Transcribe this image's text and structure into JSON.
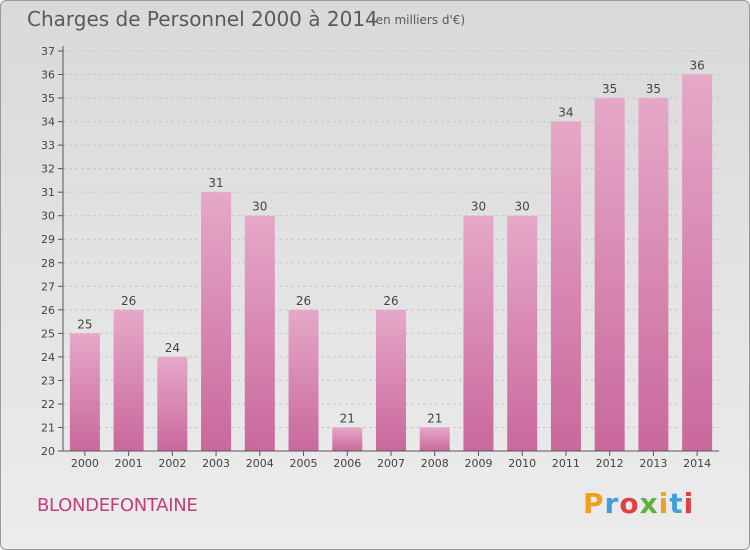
{
  "header": {
    "title": "Charges de Personnel 2000 à 2014",
    "subtitle": "(en milliers d'€)"
  },
  "footer": {
    "commune": "BLONDEFONTAINE",
    "logo": "Proxiti",
    "logo_colors": [
      "#f0a020",
      "#3fa0dc",
      "#e04040",
      "#60b040",
      "#f0a020",
      "#3fa0dc",
      "#e04040"
    ]
  },
  "colors": {
    "bar": "#c9689c",
    "bar_light": "#e6a8c8",
    "axis": "#555555",
    "grid": "#c8c8c8"
  },
  "chart_data": {
    "type": "bar",
    "categories": [
      "2000",
      "2001",
      "2002",
      "2003",
      "2004",
      "2005",
      "2006",
      "2007",
      "2008",
      "2009",
      "2010",
      "2011",
      "2012",
      "2013",
      "2014"
    ],
    "values": [
      25,
      26,
      24,
      31,
      30,
      26,
      21,
      26,
      21,
      30,
      30,
      34,
      35,
      35,
      36
    ],
    "data_labels": [
      "25",
      "26",
      "24",
      "31",
      "30",
      "26",
      "21",
      "26",
      "21",
      "30",
      "30",
      "34",
      "35",
      "35",
      "36"
    ],
    "title": "Charges de Personnel 2000 à 2014",
    "xlabel": "",
    "ylabel": "",
    "ylim": [
      20,
      37
    ],
    "yticks": [
      20,
      21,
      22,
      23,
      24,
      25,
      26,
      27,
      28,
      29,
      30,
      31,
      32,
      33,
      34,
      35,
      36,
      37
    ],
    "grid": true
  }
}
